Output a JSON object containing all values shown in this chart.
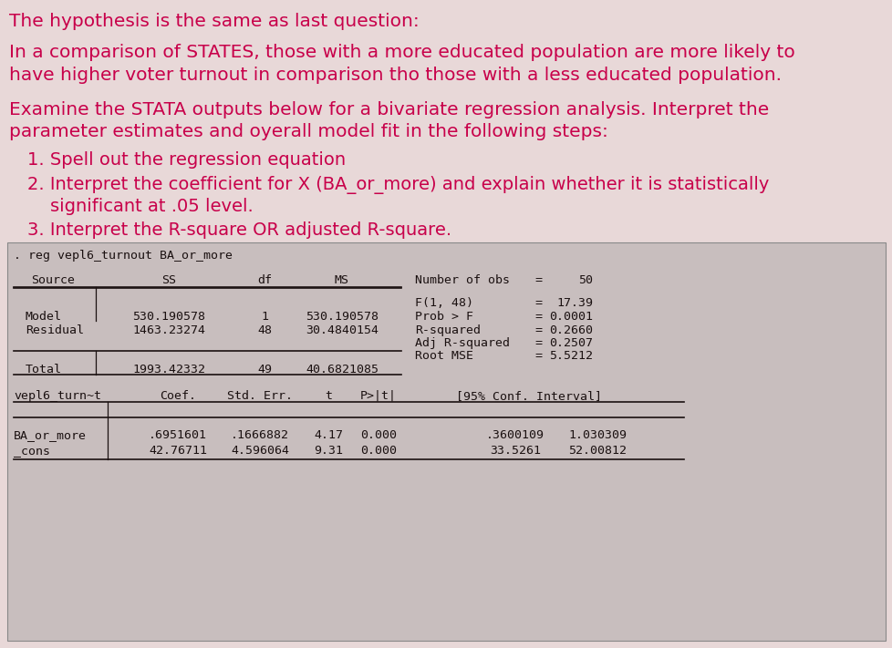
{
  "bg_color": "#e8d8d8",
  "stata_bg": "#c8bebe",
  "text_color": "#1a1a1a",
  "pink_text": "#c8004a",
  "mono_color": "#1a1010",
  "title_text": "The hypothesis is the same as last question:",
  "para1_line1": "In a comparison of STATES, those with a more educated population are more likely to",
  "para1_line2": "have higher voter turnout in comparison tho those with a less educated population.",
  "para2_line1": "Examine the STATA outputs below for a bivariate regression analysis. Interpret the",
  "para2_line2": "parameter estimates and oyerall model fit in the following steps:",
  "item1": "1. Spell out the regression equation",
  "item2_line1": "2. Interpret the coefficient for X (BA_or_more) and explain whether it is statistically",
  "item2_line2": "    significant at .05 level.",
  "item3": "3. Interpret the R-square OR adjusted R-square.",
  "stata_command": ". reg vepl6_turnout BA_or_more",
  "anova_source_hdr": "Source",
  "anova_ss_hdr": "SS",
  "anova_df_hdr": "df",
  "anova_ms_hdr": "MS",
  "stat_labels": [
    "Number of obs",
    "F(1, 48)",
    "Prob > F",
    "R-squared",
    "Adj R-squared",
    "Root MSE"
  ],
  "stat_eq": [
    "=",
    "=",
    "=",
    "=",
    "=",
    "="
  ],
  "stat_vals": [
    "50",
    "17.39",
    "0.0001",
    "0.2660",
    "0.2507",
    "5.5212"
  ],
  "anova_rows": [
    [
      "Model",
      "530.190578",
      "1",
      "530.190578"
    ],
    [
      "Residual",
      "1463.23274",
      "48",
      "30.4840154"
    ],
    [
      "Total",
      "1993.42332",
      "49",
      "40.6821085"
    ]
  ],
  "coef_dep_hdr": "vepl6_turn~t",
  "coef_headers": [
    "Coef.",
    "Std. Err.",
    "t",
    "P>|t|",
    "[95% Conf. Interval]"
  ],
  "coef_rows": [
    [
      "BA_or_more",
      ".6951601",
      ".1666882",
      "4.17",
      "0.000",
      ".3600109",
      "1.030309"
    ],
    [
      "_cons",
      "42.76711",
      "4.596064",
      "9.31",
      "0.000",
      "33.5261",
      "52.00812"
    ]
  ]
}
